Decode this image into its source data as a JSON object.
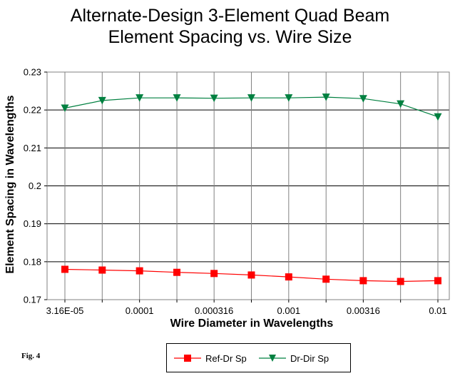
{
  "fig_label": "Fig. 4",
  "chart_data": {
    "type": "line",
    "title": [
      "Alternate-Design 3-Element Quad Beam",
      "Element Spacing vs. Wire Size"
    ],
    "xlabel": "Wire Diameter in Wavelengths",
    "ylabel": "Element Spacing in Wavelengths",
    "x_scale": "log",
    "x": [
      3.16e-05,
      5.62e-05,
      0.0001,
      0.000178,
      0.000316,
      0.000562,
      0.001,
      0.00178,
      0.00316,
      0.00562,
      0.01
    ],
    "x_tick_labels": [
      "3.16E-05",
      "0.0001",
      "0.000316",
      "0.001",
      "0.00316",
      "0.01"
    ],
    "y_tick_labels": [
      "0.17",
      "0.18",
      "0.19",
      "0.2",
      "0.21",
      "0.22",
      "0.23"
    ],
    "ylim": [
      0.17,
      0.23
    ],
    "y_ticks": [
      0.17,
      0.18,
      0.19,
      0.2,
      0.21,
      0.22,
      0.23
    ],
    "grid": true,
    "legend_position": "bottom",
    "series": [
      {
        "name": "Ref-Dr Sp",
        "color": "#ff0000",
        "marker": "square",
        "values": [
          0.178,
          0.1778,
          0.1776,
          0.1772,
          0.1769,
          0.1765,
          0.176,
          0.1754,
          0.175,
          0.1748,
          0.175
        ]
      },
      {
        "name": "Dr-Dir Sp",
        "color": "#008040",
        "marker": "triangle-down",
        "values": [
          0.2205,
          0.2225,
          0.2232,
          0.2232,
          0.2231,
          0.2232,
          0.2232,
          0.2234,
          0.223,
          0.2216,
          0.2182
        ]
      }
    ]
  }
}
